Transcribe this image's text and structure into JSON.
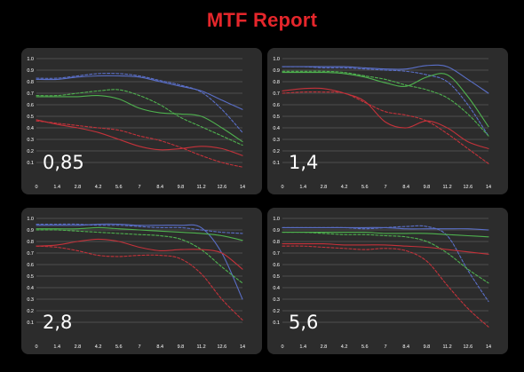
{
  "title": "MTF Report",
  "colors": {
    "title": "#e5262b",
    "background": "#000000",
    "panel": "#2c2c2c",
    "grid": "#5a5a5a",
    "tick_text": "#ffffff",
    "blue": "#5a6fc8",
    "green": "#4fb24f",
    "red": "#c4323a"
  },
  "chart_data": [
    {
      "type": "line",
      "title": "0,85",
      "x": [
        0,
        1.4,
        2.8,
        4.2,
        5.6,
        7,
        8.4,
        9.8,
        11.2,
        12.6,
        14
      ],
      "x_ticks": [
        "0",
        "1.4",
        "2.8",
        "4.2",
        "5.6",
        "7",
        "8.4",
        "9.8",
        "11.2",
        "12.6",
        "14"
      ],
      "y_ticks": [
        "0.1",
        "0.2",
        "0.3",
        "0.4",
        "0.5",
        "0.6",
        "0.7",
        "0.8",
        "0.9",
        "1.0"
      ],
      "xlim": [
        0,
        14
      ],
      "ylim": [
        0,
        1.0
      ],
      "grid": true,
      "series": [
        {
          "color": "blue",
          "style": "solid",
          "values": [
            0.82,
            0.82,
            0.84,
            0.85,
            0.85,
            0.84,
            0.8,
            0.76,
            0.72,
            0.64,
            0.56
          ]
        },
        {
          "color": "blue",
          "style": "dashed",
          "values": [
            0.83,
            0.83,
            0.85,
            0.87,
            0.87,
            0.85,
            0.81,
            0.77,
            0.71,
            0.56,
            0.36
          ]
        },
        {
          "color": "green",
          "style": "solid",
          "values": [
            0.67,
            0.67,
            0.67,
            0.68,
            0.65,
            0.57,
            0.53,
            0.52,
            0.5,
            0.4,
            0.28
          ]
        },
        {
          "color": "green",
          "style": "dashed",
          "values": [
            0.68,
            0.68,
            0.7,
            0.72,
            0.73,
            0.68,
            0.6,
            0.49,
            0.41,
            0.33,
            0.25
          ]
        },
        {
          "color": "red",
          "style": "solid",
          "values": [
            0.47,
            0.43,
            0.4,
            0.36,
            0.3,
            0.24,
            0.21,
            0.22,
            0.24,
            0.22,
            0.16
          ]
        },
        {
          "color": "red",
          "style": "dashed",
          "values": [
            0.46,
            0.44,
            0.42,
            0.4,
            0.38,
            0.33,
            0.29,
            0.23,
            0.16,
            0.1,
            0.06
          ]
        }
      ]
    },
    {
      "type": "line",
      "title": "1,4",
      "x": [
        0,
        1.4,
        2.8,
        4.2,
        5.6,
        7,
        8.4,
        9.8,
        11.2,
        12.6,
        14
      ],
      "x_ticks": [
        "0",
        "1.4",
        "2.8",
        "4.2",
        "5.6",
        "7",
        "8.4",
        "9.8",
        "11.2",
        "12.6",
        "14"
      ],
      "y_ticks": [
        "0.1",
        "0.2",
        "0.3",
        "0.4",
        "0.5",
        "0.6",
        "0.7",
        "0.8",
        "0.9",
        "1.0"
      ],
      "xlim": [
        0,
        14
      ],
      "ylim": [
        0,
        1.0
      ],
      "grid": true,
      "series": [
        {
          "color": "blue",
          "style": "solid",
          "values": [
            0.93,
            0.93,
            0.93,
            0.93,
            0.92,
            0.91,
            0.91,
            0.94,
            0.93,
            0.82,
            0.7
          ]
        },
        {
          "color": "blue",
          "style": "dashed",
          "values": [
            0.93,
            0.93,
            0.92,
            0.92,
            0.91,
            0.9,
            0.89,
            0.86,
            0.8,
            0.6,
            0.33
          ]
        },
        {
          "color": "green",
          "style": "solid",
          "values": [
            0.88,
            0.88,
            0.88,
            0.87,
            0.84,
            0.79,
            0.76,
            0.84,
            0.86,
            0.67,
            0.41
          ]
        },
        {
          "color": "green",
          "style": "dashed",
          "values": [
            0.89,
            0.89,
            0.89,
            0.88,
            0.85,
            0.82,
            0.77,
            0.73,
            0.66,
            0.52,
            0.33
          ]
        },
        {
          "color": "red",
          "style": "solid",
          "values": [
            0.72,
            0.74,
            0.74,
            0.7,
            0.63,
            0.45,
            0.4,
            0.46,
            0.4,
            0.28,
            0.22
          ]
        },
        {
          "color": "red",
          "style": "dashed",
          "values": [
            0.7,
            0.71,
            0.71,
            0.7,
            0.62,
            0.54,
            0.51,
            0.46,
            0.35,
            0.22,
            0.09
          ]
        }
      ]
    },
    {
      "type": "line",
      "title": "2,8",
      "x": [
        0,
        1.4,
        2.8,
        4.2,
        5.6,
        7,
        8.4,
        9.8,
        11.2,
        12.6,
        14
      ],
      "x_ticks": [
        "0",
        "1.4",
        "2.8",
        "4.2",
        "5.6",
        "7",
        "8.4",
        "9.8",
        "11.2",
        "12.6",
        "14"
      ],
      "y_ticks": [
        "0.1",
        "0.2",
        "0.3",
        "0.4",
        "0.5",
        "0.6",
        "0.7",
        "0.8",
        "0.9",
        "1.0"
      ],
      "xlim": [
        0,
        14
      ],
      "ylim": [
        0,
        1.0
      ],
      "grid": true,
      "series": [
        {
          "color": "blue",
          "style": "solid",
          "values": [
            0.94,
            0.94,
            0.94,
            0.95,
            0.95,
            0.94,
            0.94,
            0.94,
            0.92,
            0.7,
            0.3
          ]
        },
        {
          "color": "blue",
          "style": "dashed",
          "values": [
            0.95,
            0.95,
            0.95,
            0.94,
            0.94,
            0.93,
            0.92,
            0.92,
            0.9,
            0.88,
            0.87
          ]
        },
        {
          "color": "green",
          "style": "solid",
          "values": [
            0.91,
            0.91,
            0.91,
            0.92,
            0.91,
            0.9,
            0.89,
            0.88,
            0.87,
            0.85,
            0.81
          ]
        },
        {
          "color": "green",
          "style": "dashed",
          "values": [
            0.9,
            0.9,
            0.89,
            0.88,
            0.87,
            0.86,
            0.85,
            0.82,
            0.73,
            0.58,
            0.44
          ]
        },
        {
          "color": "red",
          "style": "solid",
          "values": [
            0.76,
            0.77,
            0.8,
            0.82,
            0.8,
            0.75,
            0.72,
            0.73,
            0.73,
            0.7,
            0.56
          ]
        },
        {
          "color": "red",
          "style": "dashed",
          "values": [
            0.76,
            0.75,
            0.72,
            0.68,
            0.67,
            0.68,
            0.68,
            0.65,
            0.52,
            0.3,
            0.12
          ]
        }
      ]
    },
    {
      "type": "line",
      "title": "5,6",
      "x": [
        0,
        1.4,
        2.8,
        4.2,
        5.6,
        7,
        8.4,
        9.8,
        11.2,
        12.6,
        14
      ],
      "x_ticks": [
        "0",
        "1.4",
        "2.8",
        "4.2",
        "5.6",
        "7",
        "8.4",
        "9.8",
        "11.2",
        "12.6",
        "14"
      ],
      "y_ticks": [
        "0.1",
        "0.2",
        "0.3",
        "0.4",
        "0.5",
        "0.6",
        "0.7",
        "0.8",
        "0.9",
        "1.0"
      ],
      "xlim": [
        0,
        14
      ],
      "ylim": [
        0,
        1.0
      ],
      "grid": true,
      "series": [
        {
          "color": "blue",
          "style": "solid",
          "values": [
            0.92,
            0.92,
            0.92,
            0.92,
            0.92,
            0.92,
            0.91,
            0.91,
            0.91,
            0.91,
            0.9
          ]
        },
        {
          "color": "blue",
          "style": "dashed",
          "values": [
            0.92,
            0.92,
            0.92,
            0.92,
            0.91,
            0.92,
            0.93,
            0.93,
            0.85,
            0.55,
            0.28
          ]
        },
        {
          "color": "green",
          "style": "solid",
          "values": [
            0.88,
            0.88,
            0.88,
            0.88,
            0.88,
            0.87,
            0.87,
            0.87,
            0.86,
            0.85,
            0.84
          ]
        },
        {
          "color": "green",
          "style": "dashed",
          "values": [
            0.88,
            0.88,
            0.87,
            0.86,
            0.86,
            0.85,
            0.84,
            0.8,
            0.7,
            0.56,
            0.44
          ]
        },
        {
          "color": "red",
          "style": "solid",
          "values": [
            0.78,
            0.78,
            0.78,
            0.77,
            0.77,
            0.77,
            0.76,
            0.75,
            0.73,
            0.71,
            0.69
          ]
        },
        {
          "color": "red",
          "style": "dashed",
          "values": [
            0.76,
            0.76,
            0.75,
            0.74,
            0.73,
            0.74,
            0.72,
            0.63,
            0.42,
            0.22,
            0.06
          ]
        }
      ]
    }
  ]
}
